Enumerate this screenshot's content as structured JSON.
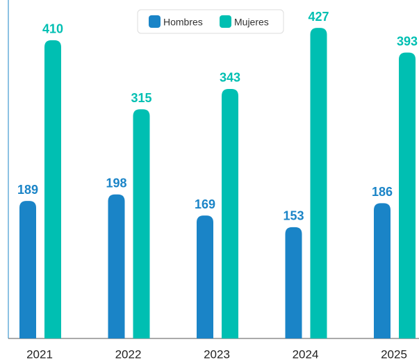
{
  "chart_data": {
    "type": "bar",
    "categories": [
      "2021",
      "2022",
      "2023",
      "2024",
      "2025"
    ],
    "series": [
      {
        "name": "Hombres",
        "color": "#1a84c7",
        "values": [
          189,
          198,
          169,
          153,
          186
        ]
      },
      {
        "name": "Mujeres",
        "color": "#00bfb2",
        "values": [
          410,
          315,
          343,
          427,
          393
        ]
      }
    ],
    "ylim": [
      0,
      450
    ]
  }
}
